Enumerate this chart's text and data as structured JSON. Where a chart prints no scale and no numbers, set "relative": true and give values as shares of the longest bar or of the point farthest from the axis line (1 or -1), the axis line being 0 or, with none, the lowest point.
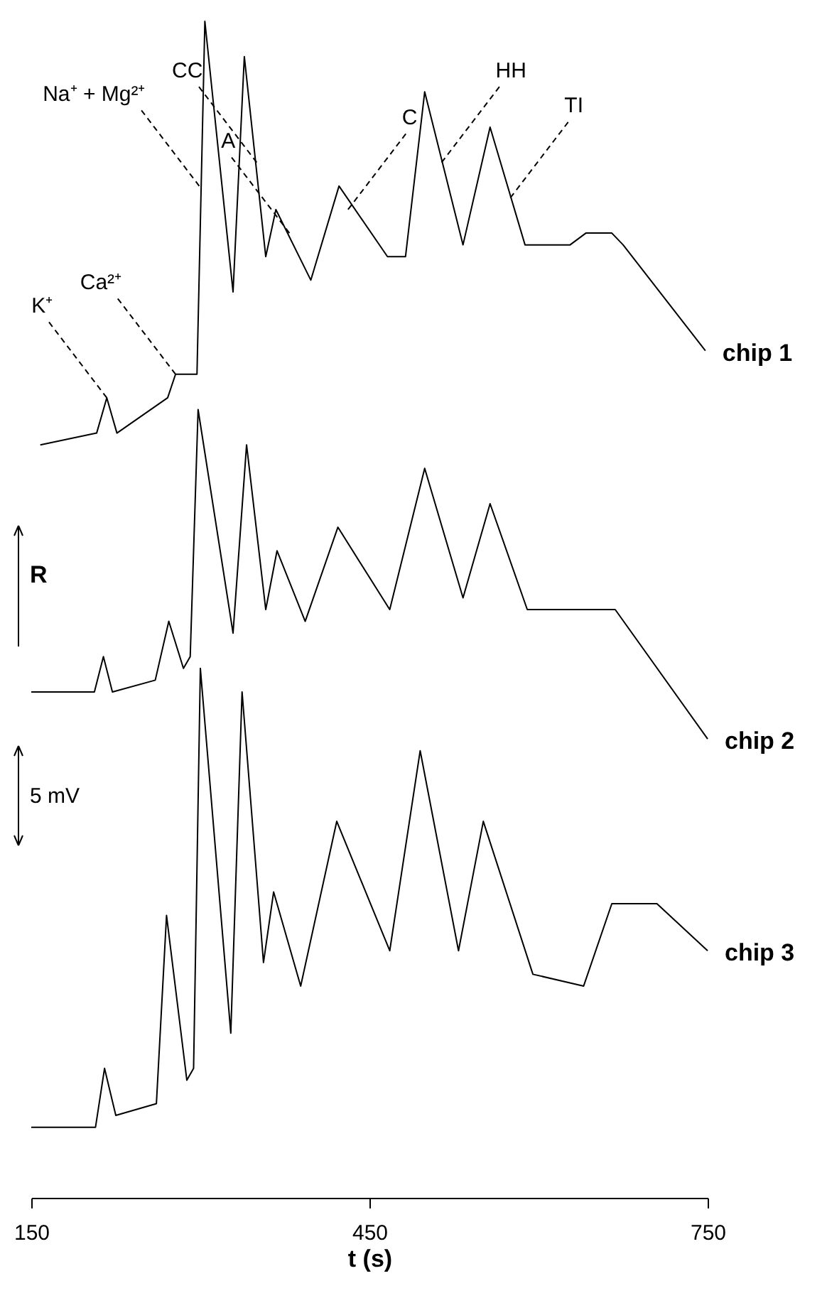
{
  "chart_data": {
    "type": "line",
    "relative": true,
    "xlabel": "t (s)",
    "xlim": [
      150,
      750
    ],
    "xticks": [
      150,
      450,
      750
    ],
    "grid": false,
    "legend": false,
    "marker": "none",
    "line_style": "solid",
    "series": [
      {
        "name": "chip 1",
        "color": "#000000",
        "x": [
          158,
          208,
          217,
          226,
          271,
          278,
          297,
          304,
          329,
          339,
          358,
          367,
          398,
          423,
          466,
          482,
          499,
          533,
          557,
          588,
          628,
          642,
          665,
          675,
          748
        ],
        "values": [
          0.64,
          0.65,
          0.68,
          0.65,
          0.68,
          0.7,
          0.7,
          1.0,
          0.77,
          0.97,
          0.8,
          0.84,
          0.78,
          0.86,
          0.8,
          0.8,
          0.94,
          0.81,
          0.91,
          0.81,
          0.81,
          0.82,
          0.82,
          0.81,
          0.72
        ]
      },
      {
        "name": "chip 2",
        "color": "#000000",
        "x": [
          150,
          206,
          214,
          222,
          260,
          272,
          285,
          291,
          298,
          329,
          341,
          358,
          368,
          393,
          422,
          468,
          499,
          533,
          557,
          590,
          668,
          750
        ],
        "values": [
          0.43,
          0.43,
          0.46,
          0.43,
          0.44,
          0.49,
          0.45,
          0.46,
          0.67,
          0.48,
          0.64,
          0.5,
          0.55,
          0.49,
          0.57,
          0.5,
          0.62,
          0.51,
          0.59,
          0.5,
          0.5,
          0.39
        ]
      },
      {
        "name": "chip 3",
        "color": "#000000",
        "x": [
          150,
          207,
          215,
          225,
          261,
          270,
          288,
          294,
          300,
          327,
          337,
          356,
          365,
          389,
          421,
          468,
          495,
          529,
          551,
          595,
          640,
          665,
          705,
          750
        ],
        "values": [
          0.06,
          0.06,
          0.11,
          0.07,
          0.08,
          0.24,
          0.1,
          0.11,
          0.45,
          0.14,
          0.43,
          0.2,
          0.26,
          0.18,
          0.32,
          0.21,
          0.38,
          0.21,
          0.32,
          0.19,
          0.18,
          0.25,
          0.25,
          0.21
        ]
      }
    ],
    "annotations": [
      {
        "text": "K⁺",
        "x": 217,
        "y": 0.68
      },
      {
        "text": "Ca²⁺",
        "x": 278,
        "y": 0.7
      },
      {
        "text": "Na⁺ + Mg²⁺",
        "x": 299,
        "y": 0.86
      },
      {
        "text": "CC",
        "x": 350,
        "y": 0.88
      },
      {
        "text": "A",
        "x": 379,
        "y": 0.82
      },
      {
        "text": "C",
        "x": 431,
        "y": 0.84
      },
      {
        "text": "HH",
        "x": 514,
        "y": 0.88
      },
      {
        "text": "TI",
        "x": 575,
        "y": 0.85
      },
      "R",
      "5 mV"
    ]
  }
}
